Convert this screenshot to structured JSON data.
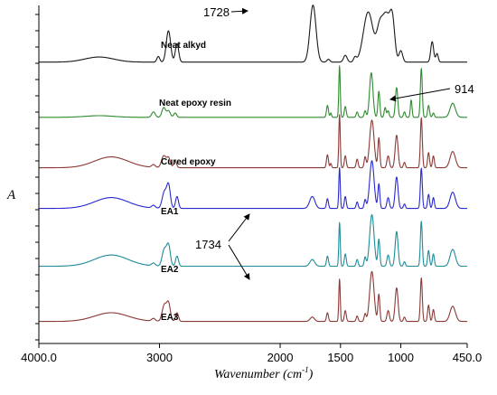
{
  "chart_data": {
    "type": "line",
    "title": "",
    "xlabel": "Wavenumber (cm",
    "xlabel_sup": "-1",
    "xlabel_close": ")",
    "ylabel": "A",
    "xlim": [
      4000,
      450
    ],
    "x_reversed": true,
    "x_ticks": [
      {
        "value": 4000,
        "label": "4000.0"
      },
      {
        "value": 3000,
        "label": "3000"
      },
      {
        "value": 2000,
        "label": "2000"
      },
      {
        "value": 1500,
        "label": "1500"
      },
      {
        "value": 1000,
        "label": "1000"
      },
      {
        "value": 450,
        "label": "450.0"
      }
    ],
    "grid": false,
    "stacked_offset": true,
    "series": [
      {
        "name": "Neat alkyd",
        "color": "#1a1a1a",
        "baseline": 0.02,
        "peaks": [
          [
            3500,
            0.09,
            120
          ],
          [
            3010,
            0.1,
            12
          ],
          [
            2926,
            0.55,
            18
          ],
          [
            2855,
            0.32,
            14
          ],
          [
            1728,
            1.0,
            25
          ],
          [
            1600,
            0.05,
            12
          ],
          [
            1460,
            0.12,
            15
          ],
          [
            1380,
            0.08,
            12
          ],
          [
            1270,
            0.88,
            40
          ],
          [
            1175,
            0.55,
            25
          ],
          [
            1120,
            0.8,
            30
          ],
          [
            1070,
            0.68,
            20
          ],
          [
            1000,
            0.2,
            15
          ],
          [
            740,
            0.36,
            12
          ],
          [
            700,
            0.15,
            10
          ]
        ]
      },
      {
        "name": "Neat epoxy resin",
        "color": "#2e8b2e",
        "baseline": 0.02,
        "peaks": [
          [
            3500,
            0.03,
            120
          ],
          [
            3050,
            0.1,
            15
          ],
          [
            2965,
            0.18,
            15
          ],
          [
            2925,
            0.12,
            15
          ],
          [
            2870,
            0.08,
            12
          ],
          [
            1608,
            0.22,
            8
          ],
          [
            1580,
            0.08,
            6
          ],
          [
            1508,
            0.95,
            6
          ],
          [
            1460,
            0.2,
            8
          ],
          [
            1362,
            0.1,
            8
          ],
          [
            1296,
            0.12,
            8
          ],
          [
            1245,
            0.82,
            14
          ],
          [
            1182,
            0.48,
            8
          ],
          [
            1130,
            0.18,
            8
          ],
          [
            1105,
            0.12,
            8
          ],
          [
            1035,
            0.55,
            10
          ],
          [
            970,
            0.1,
            8
          ],
          [
            914,
            0.32,
            7
          ],
          [
            830,
            0.9,
            8
          ],
          [
            770,
            0.22,
            8
          ],
          [
            730,
            0.08,
            8
          ],
          [
            570,
            0.26,
            22
          ]
        ]
      },
      {
        "name": "Cured epoxy",
        "color": "#8b3a36",
        "baseline": 0.04,
        "peaks": [
          [
            3400,
            0.2,
            140
          ],
          [
            3050,
            0.05,
            15
          ],
          [
            2965,
            0.22,
            18
          ],
          [
            2925,
            0.18,
            15
          ],
          [
            2870,
            0.12,
            12
          ],
          [
            1608,
            0.24,
            8
          ],
          [
            1580,
            0.08,
            6
          ],
          [
            1508,
            0.98,
            6
          ],
          [
            1460,
            0.22,
            8
          ],
          [
            1362,
            0.16,
            8
          ],
          [
            1296,
            0.2,
            8
          ],
          [
            1240,
            0.88,
            18
          ],
          [
            1182,
            0.55,
            8
          ],
          [
            1105,
            0.22,
            10
          ],
          [
            1035,
            0.6,
            12
          ],
          [
            970,
            0.1,
            8
          ],
          [
            830,
            0.92,
            8
          ],
          [
            770,
            0.28,
            8
          ],
          [
            730,
            0.22,
            8
          ],
          [
            570,
            0.3,
            22
          ]
        ]
      },
      {
        "name": "EA1",
        "color": "#2a2ad0",
        "baseline": 0.04,
        "peaks": [
          [
            3400,
            0.2,
            140
          ],
          [
            3050,
            0.05,
            15
          ],
          [
            2960,
            0.3,
            18
          ],
          [
            2925,
            0.42,
            15
          ],
          [
            2855,
            0.22,
            12
          ],
          [
            1734,
            0.22,
            22
          ],
          [
            1608,
            0.18,
            8
          ],
          [
            1508,
            0.75,
            6
          ],
          [
            1460,
            0.22,
            8
          ],
          [
            1362,
            0.12,
            8
          ],
          [
            1296,
            0.16,
            8
          ],
          [
            1240,
            0.88,
            18
          ],
          [
            1182,
            0.45,
            8
          ],
          [
            1105,
            0.2,
            10
          ],
          [
            1035,
            0.58,
            12
          ],
          [
            970,
            0.08,
            8
          ],
          [
            830,
            0.74,
            8
          ],
          [
            770,
            0.26,
            8
          ],
          [
            730,
            0.2,
            8
          ],
          [
            570,
            0.3,
            22
          ]
        ]
      },
      {
        "name": "EA2",
        "color": "#1f8c99",
        "baseline": 0.04,
        "peaks": [
          [
            3400,
            0.2,
            140
          ],
          [
            3050,
            0.05,
            15
          ],
          [
            2960,
            0.3,
            18
          ],
          [
            2925,
            0.36,
            15
          ],
          [
            2855,
            0.18,
            12
          ],
          [
            1734,
            0.12,
            20
          ],
          [
            1608,
            0.18,
            8
          ],
          [
            1508,
            0.78,
            6
          ],
          [
            1460,
            0.22,
            8
          ],
          [
            1362,
            0.12,
            8
          ],
          [
            1296,
            0.16,
            8
          ],
          [
            1240,
            0.92,
            18
          ],
          [
            1182,
            0.48,
            8
          ],
          [
            1105,
            0.2,
            10
          ],
          [
            1035,
            0.62,
            12
          ],
          [
            970,
            0.08,
            8
          ],
          [
            830,
            0.8,
            8
          ],
          [
            770,
            0.28,
            8
          ],
          [
            730,
            0.22,
            8
          ],
          [
            570,
            0.3,
            22
          ]
        ]
      },
      {
        "name": "EA3",
        "color": "#8b3a36",
        "baseline": 0.04,
        "peaks": [
          [
            3400,
            0.16,
            140
          ],
          [
            3050,
            0.05,
            15
          ],
          [
            2960,
            0.3,
            18
          ],
          [
            2925,
            0.32,
            15
          ],
          [
            2855,
            0.16,
            12
          ],
          [
            1734,
            0.08,
            18
          ],
          [
            1608,
            0.16,
            8
          ],
          [
            1508,
            0.78,
            6
          ],
          [
            1460,
            0.2,
            8
          ],
          [
            1362,
            0.1,
            8
          ],
          [
            1296,
            0.14,
            8
          ],
          [
            1240,
            0.92,
            18
          ],
          [
            1182,
            0.5,
            8
          ],
          [
            1105,
            0.2,
            10
          ],
          [
            1035,
            0.62,
            12
          ],
          [
            970,
            0.08,
            8
          ],
          [
            830,
            0.8,
            8
          ],
          [
            770,
            0.3,
            8
          ],
          [
            730,
            0.22,
            8
          ],
          [
            570,
            0.28,
            22
          ]
        ]
      }
    ],
    "annotations": [
      {
        "text": "1728",
        "target_series": "Neat alkyd",
        "target_x": 1728
      },
      {
        "text": "914",
        "target_series": "Neat epoxy resin",
        "target_x": 914
      },
      {
        "text": "1734",
        "target_series": "EA1",
        "target_x": 1734
      },
      {
        "text": "",
        "target_series": "EA2",
        "target_x": 1734
      }
    ]
  }
}
